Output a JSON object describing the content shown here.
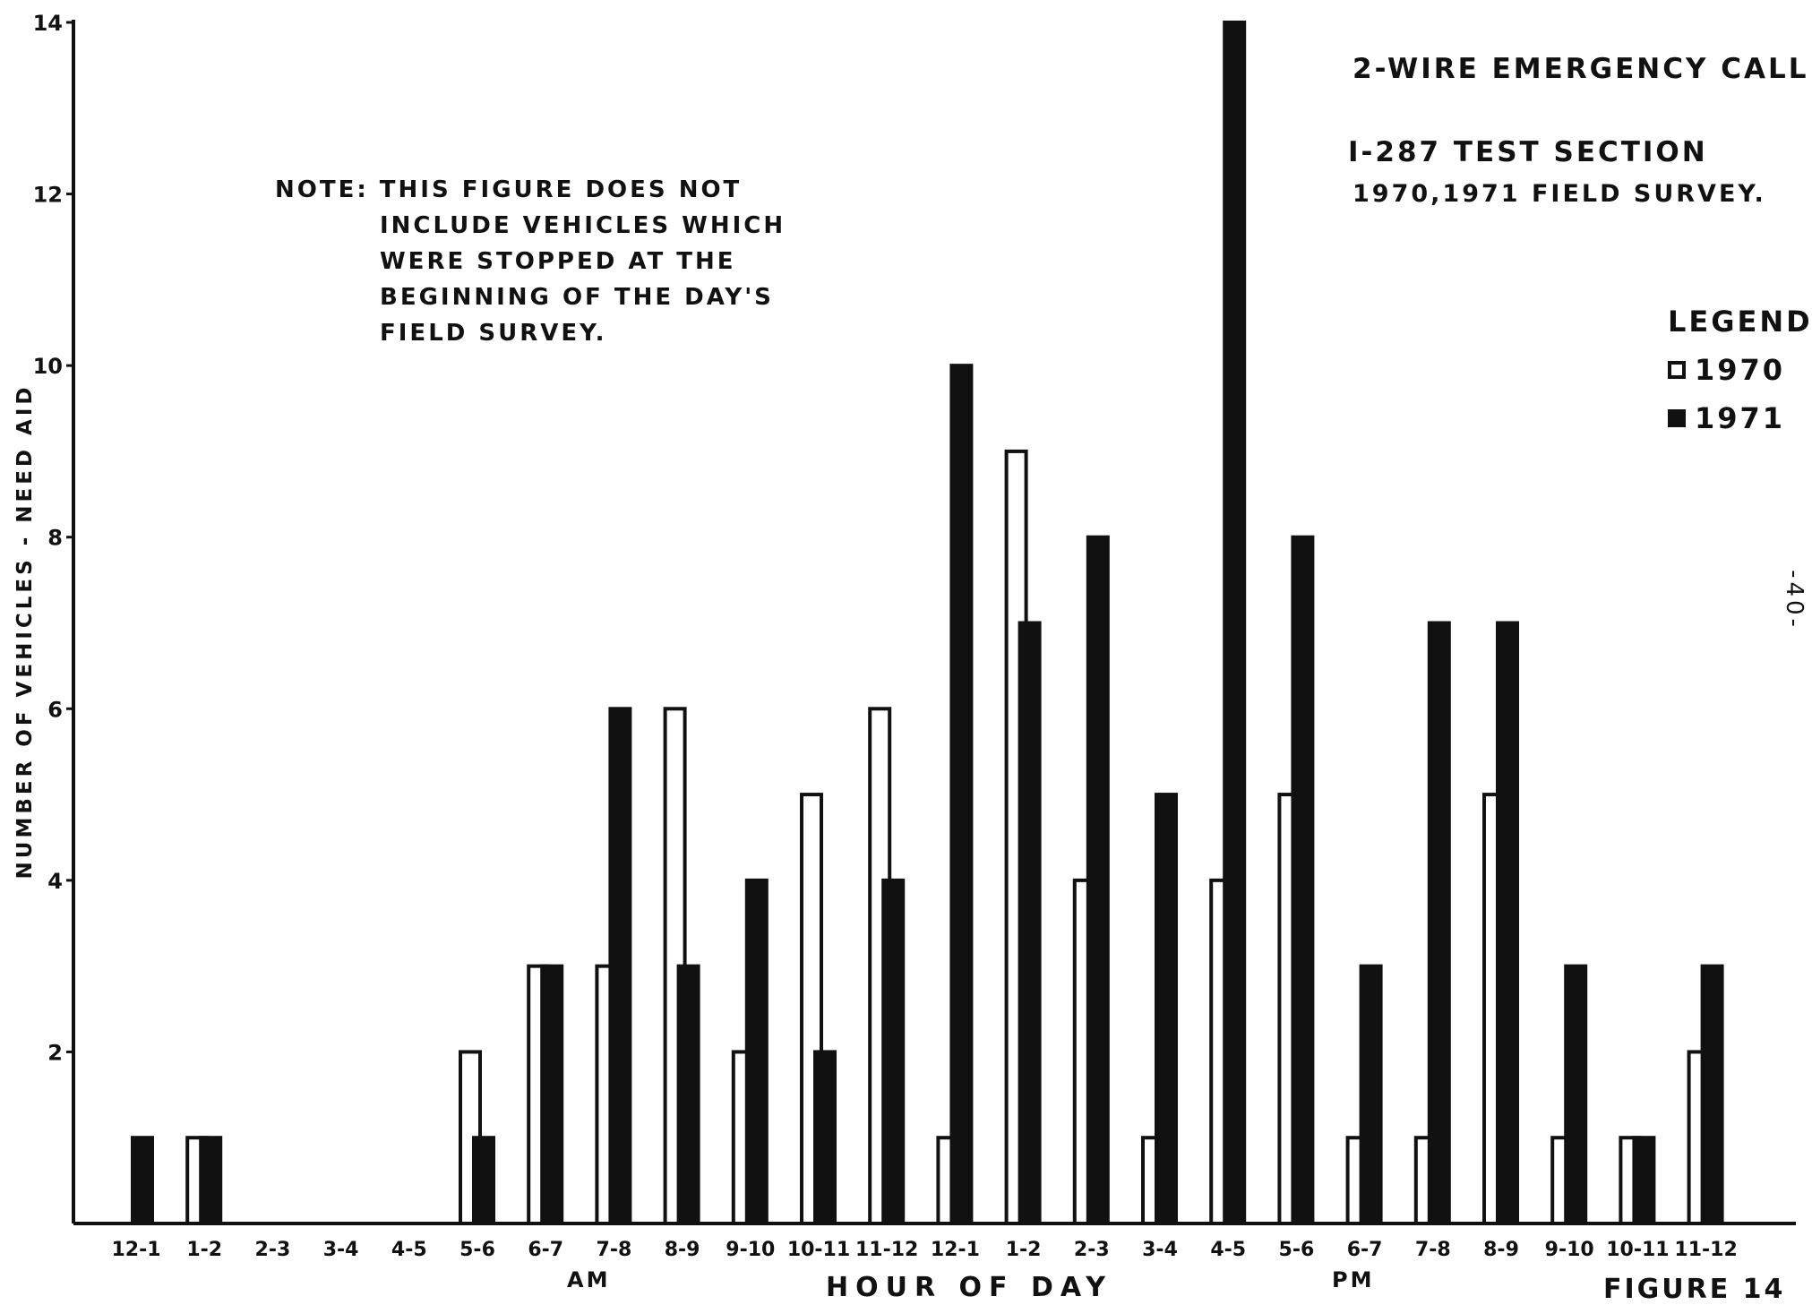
{
  "chart_data": {
    "type": "bar",
    "title": "2-WIRE EMERGENCY CALL",
    "subtitle_lines": [
      "I-287  TEST SECTION",
      "1970,1971 FIELD SURVEY."
    ],
    "note_lines": [
      "NOTE: THIS FIGURE DOES NOT",
      "INCLUDE VEHICLES WHICH",
      "WERE STOPPED AT THE",
      "BEGINNING OF THE DAY'S",
      "FIELD SURVEY."
    ],
    "xlabel": "HOUR   OF   DAY",
    "ylabel": "NUMBER OF VEHICLES - NEED AID",
    "am_label": "AM",
    "pm_label": "PM",
    "figure_label": "FIGURE 14",
    "page_number": "-40-",
    "legend_title": "LEGEND",
    "legend_position": "right",
    "ylim": [
      0,
      14
    ],
    "yticks": [
      2,
      4,
      6,
      8,
      10,
      12,
      14
    ],
    "grid": false,
    "categories": [
      "12-1",
      "1-2",
      "2-3",
      "3-4",
      "4-5",
      "5-6",
      "6-7",
      "7-8",
      "8-9",
      "9-10",
      "10-11",
      "11-12",
      "12-1",
      "1-2",
      "2-3",
      "3-4",
      "4-5",
      "5-6",
      "6-7",
      "7-8",
      "8-9",
      "9-10",
      "10-11",
      "11-12"
    ],
    "series": [
      {
        "name": "1970",
        "fill": "#ffffff",
        "values": [
          0,
          1,
          0,
          0,
          0,
          2,
          3,
          3,
          6,
          2,
          5,
          6,
          1,
          9,
          4,
          1,
          4,
          5,
          1,
          1,
          5,
          1,
          1,
          2
        ]
      },
      {
        "name": "1971",
        "fill": "#111111",
        "values": [
          1,
          1,
          0,
          0,
          0,
          1,
          3,
          6,
          3,
          4,
          2,
          4,
          10,
          7,
          8,
          5,
          14,
          8,
          3,
          7,
          7,
          3,
          1,
          3
        ]
      }
    ]
  }
}
